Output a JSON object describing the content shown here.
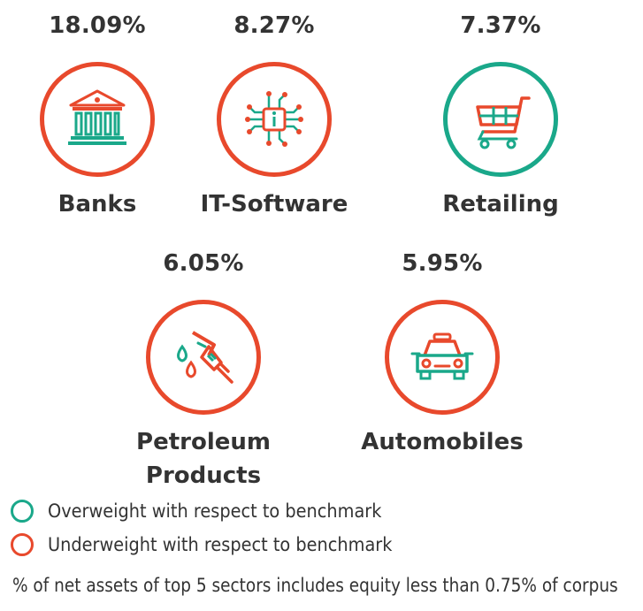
{
  "colors": {
    "overweight": "#1aa88a",
    "underweight": "#e8492c",
    "text": "#333333"
  },
  "sectors": [
    {
      "name": "Banks",
      "percent": "18.09%",
      "icon": "bank-icon",
      "weight": "underweight"
    },
    {
      "name": "IT-Software",
      "percent": "8.27%",
      "icon": "chip-icon",
      "weight": "underweight"
    },
    {
      "name": "Retailing",
      "percent": "7.37%",
      "icon": "shopping-cart-icon",
      "weight": "overweight"
    },
    {
      "name": "Petroleum Products",
      "name_line1": "Petroleum",
      "name_line2": "Products",
      "percent": "6.05%",
      "icon": "fuel-nozzle-icon",
      "weight": "underweight"
    },
    {
      "name": "Automobiles",
      "percent": "5.95%",
      "icon": "car-icon",
      "weight": "underweight"
    }
  ],
  "legend": {
    "overweight": "Overweight with respect to benchmark",
    "underweight": "Underweight with respect to benchmark"
  },
  "footnote": "% of net assets of top 5 sectors includes equity less than 0.75% of corpus"
}
